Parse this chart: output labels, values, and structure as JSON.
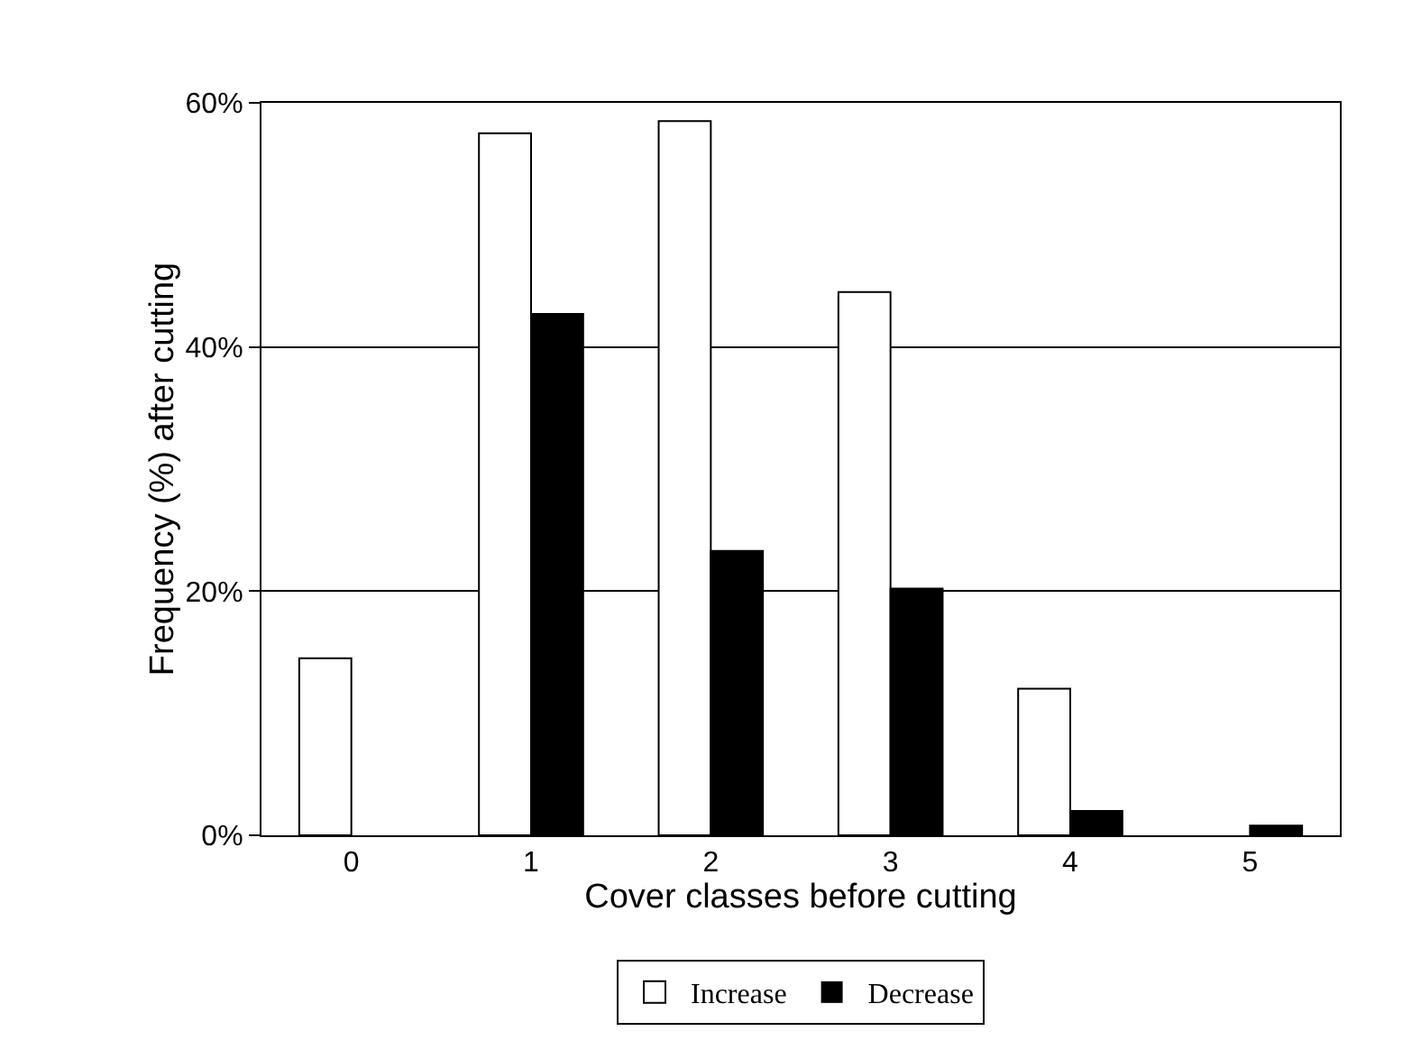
{
  "chart_data": {
    "type": "bar",
    "xlabel": "Cover classes before cutting",
    "ylabel": "Frequency (%) after cutting",
    "categories": [
      "0",
      "1",
      "2",
      "3",
      "4",
      "5"
    ],
    "series": [
      {
        "name": "Increase",
        "color": "#ffffff",
        "values": [
          14.5,
          57.5,
          58.5,
          44.5,
          12.0,
          0
        ]
      },
      {
        "name": "Decrease",
        "color": "#000000",
        "values": [
          0,
          42.7,
          23.3,
          20.2,
          2.0,
          0.8
        ]
      }
    ],
    "ylim": [
      0,
      60
    ],
    "yticks": [
      {
        "value": 0,
        "label": "0%"
      },
      {
        "value": 20,
        "label": "20%"
      },
      {
        "value": 40,
        "label": "40%"
      },
      {
        "value": 60,
        "label": "60%"
      }
    ],
    "grid": "y",
    "legend": "bottom"
  }
}
